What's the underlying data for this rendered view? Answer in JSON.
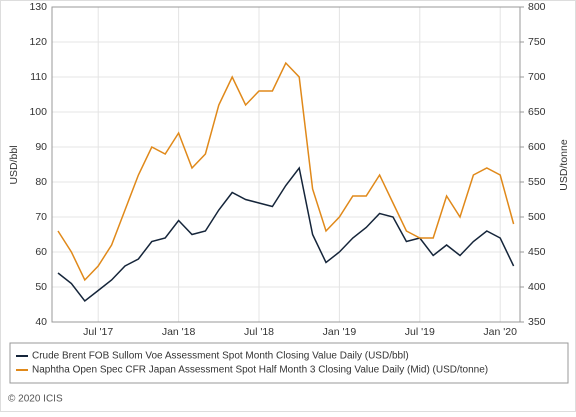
{
  "chart_data": {
    "type": "line",
    "x": [
      "2017-04",
      "2017-05",
      "2017-06",
      "2017-07",
      "2017-08",
      "2017-09",
      "2017-10",
      "2017-11",
      "2017-12",
      "2018-01",
      "2018-02",
      "2018-03",
      "2018-04",
      "2018-05",
      "2018-06",
      "2018-07",
      "2018-08",
      "2018-09",
      "2018-10",
      "2018-11",
      "2018-12",
      "2019-01",
      "2019-02",
      "2019-03",
      "2019-04",
      "2019-05",
      "2019-06",
      "2019-07",
      "2019-08",
      "2019-09",
      "2019-10",
      "2019-11",
      "2019-12",
      "2020-01",
      "2020-02"
    ],
    "series": [
      {
        "name": "Crude Brent FOB Sullom Voe Assessment Spot Month Closing Value Daily (USD/bbl)",
        "color": "#15253a",
        "values": [
          54,
          51,
          46,
          49,
          52,
          56,
          58,
          63,
          64,
          69,
          65,
          66,
          72,
          77,
          75,
          74,
          73,
          79,
          84,
          65,
          57,
          60,
          64,
          67,
          71,
          70,
          63,
          64,
          59,
          62,
          59,
          63,
          66,
          64,
          56
        ]
      },
      {
        "name": "Naphtha Open Spec CFR Japan Assessment Spot Half Month 3 Closing Value Daily (Mid) (USD/tonne)",
        "color": "#e0891a",
        "axis": "y2",
        "values": [
          480,
          450,
          410,
          430,
          460,
          510,
          560,
          600,
          590,
          620,
          570,
          590,
          660,
          700,
          660,
          680,
          680,
          720,
          700,
          540,
          480,
          500,
          530,
          530,
          560,
          520,
          480,
          470,
          470,
          530,
          500,
          560,
          570,
          560,
          490
        ]
      }
    ],
    "y_label": "USD/bbl",
    "y2_label": "USD/tonne",
    "ylim": [
      40,
      130
    ],
    "yticks": [
      40,
      50,
      60,
      70,
      80,
      90,
      100,
      110,
      120,
      130
    ],
    "y2lim": [
      350,
      800
    ],
    "y2ticks": [
      350,
      400,
      450,
      500,
      550,
      600,
      650,
      700,
      750,
      800
    ],
    "xticks": [
      {
        "value": "2017-07",
        "label": "Jul '17"
      },
      {
        "value": "2018-01",
        "label": "Jan '18"
      },
      {
        "value": "2018-07",
        "label": "Jul '18"
      },
      {
        "value": "2019-01",
        "label": "Jan '19"
      },
      {
        "value": "2019-07",
        "label": "Jul '19"
      },
      {
        "value": "2020-01",
        "label": "Jan '20"
      }
    ],
    "grid": true,
    "footer": "© 2020 ICIS"
  }
}
